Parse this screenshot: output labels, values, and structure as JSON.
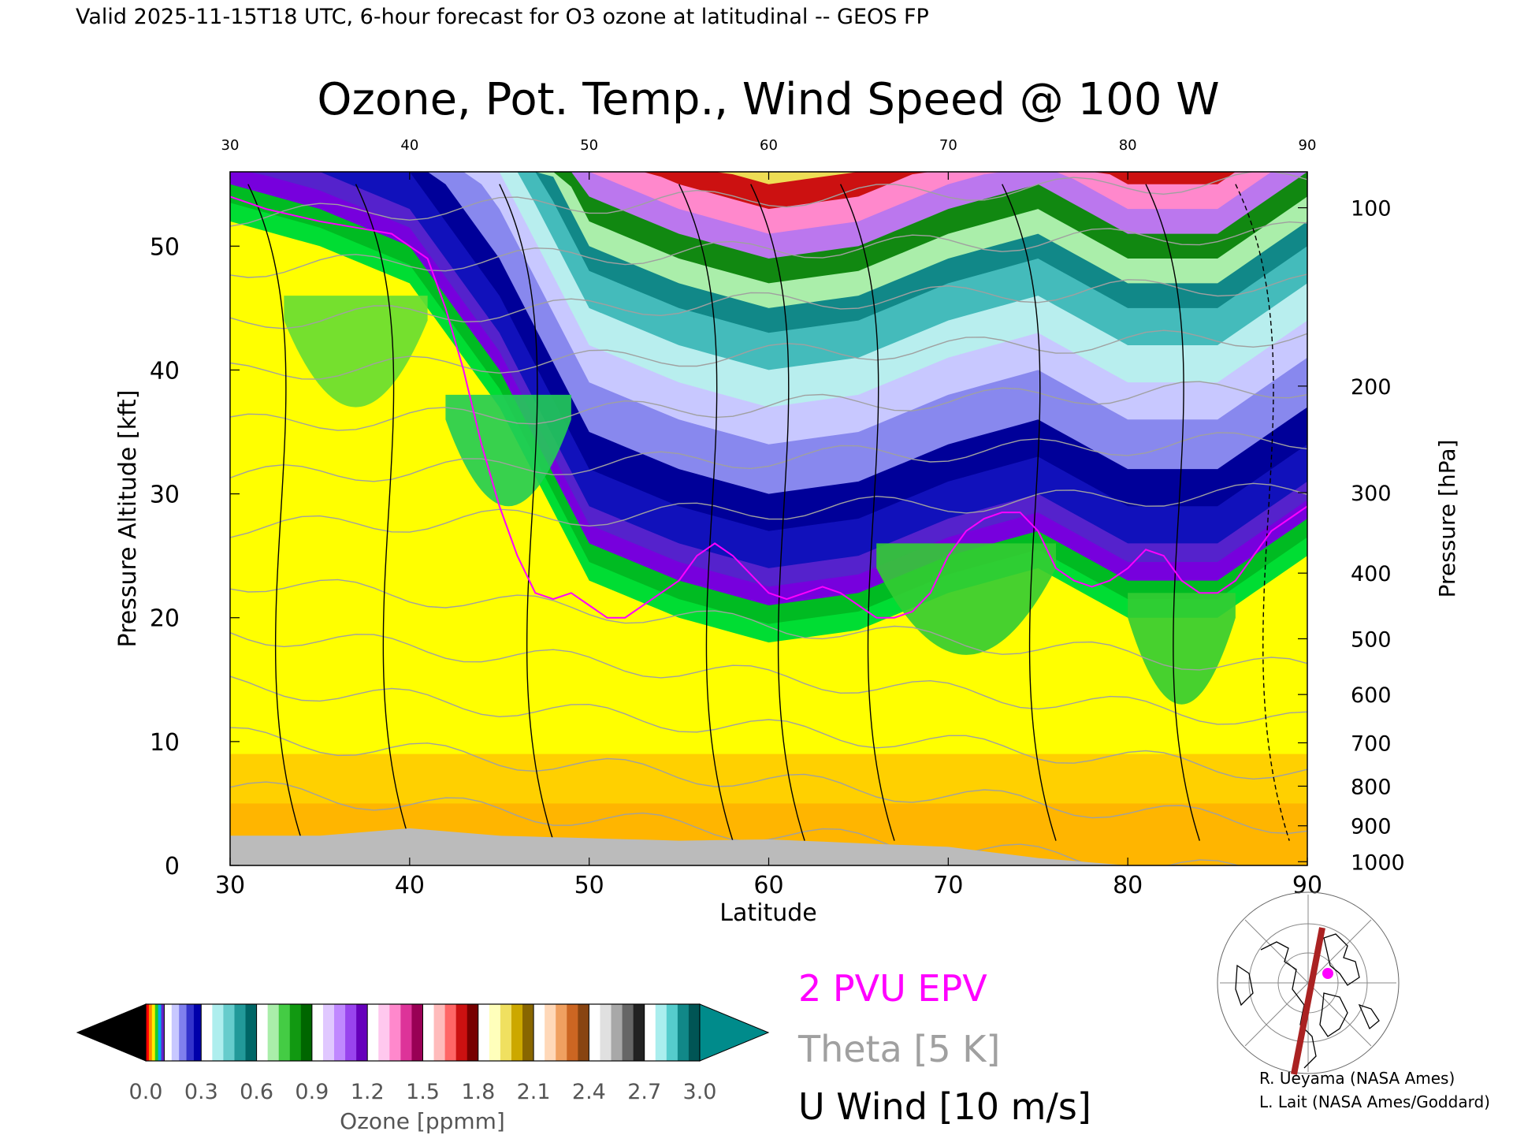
{
  "header": {
    "valid_line": "Valid 2025-11-15T18 UTC, 6-hour forecast for O3 ozone at latitudinal -- GEOS FP"
  },
  "chart_data": {
    "type": "heatmap",
    "title": "Ozone, Pot. Temp., Wind Speed @ 100 W",
    "xlabel": "Latitude",
    "ylabel_left": "Pressure Altitude [kft]",
    "ylabel_right": "Pressure [hPa]",
    "xlim": [
      30,
      90
    ],
    "ylim": [
      0,
      56
    ],
    "x_ticks": [
      30,
      40,
      50,
      60,
      70,
      80,
      90
    ],
    "y_ticks_kft": [
      0,
      10,
      20,
      30,
      40,
      50
    ],
    "pressure_ticks": [
      {
        "label": "100",
        "kft": 53.1
      },
      {
        "label": "200",
        "kft": 38.7
      },
      {
        "label": "300",
        "kft": 30.1
      },
      {
        "label": "400",
        "kft": 23.6
      },
      {
        "label": "500",
        "kft": 18.3
      },
      {
        "label": "600",
        "kft": 13.8
      },
      {
        "label": "700",
        "kft": 9.9
      },
      {
        "label": "800",
        "kft": 6.4
      },
      {
        "label": "900",
        "kft": 3.2
      },
      {
        "label": "1000",
        "kft": 0.3
      }
    ],
    "colorbar": {
      "label": "Ozone [ppmm]",
      "min": 0.0,
      "max": 3.0,
      "tick_labels": [
        "0.0",
        "0.3",
        "0.6",
        "0.9",
        "1.2",
        "1.5",
        "1.8",
        "2.1",
        "2.4",
        "2.7",
        "3.0"
      ],
      "segments": [
        {
          "from": 0.0,
          "to": 0.1,
          "colors": [
            "#ff0000",
            "#ff8800",
            "#ffee00",
            "#22cc22",
            "#00aaee",
            "#6622cc"
          ]
        },
        {
          "from": 0.1,
          "to": 0.3,
          "colors": [
            "#ffffff",
            "#c8c8ff",
            "#8080ee",
            "#3333cc",
            "#0000aa"
          ]
        },
        {
          "from": 0.3,
          "to": 0.6,
          "colors": [
            "#ffffff",
            "#aeeeee",
            "#66cccc",
            "#229999",
            "#006666"
          ]
        },
        {
          "from": 0.6,
          "to": 0.9,
          "colors": [
            "#ffffff",
            "#aaeeaa",
            "#44cc44",
            "#119911",
            "#006600"
          ]
        },
        {
          "from": 0.9,
          "to": 1.2,
          "colors": [
            "#ffffff",
            "#e0c8ff",
            "#c088ff",
            "#9944ee",
            "#6600bb"
          ]
        },
        {
          "from": 1.2,
          "to": 1.5,
          "colors": [
            "#ffffff",
            "#ffc8ee",
            "#ff88cc",
            "#dd3399",
            "#990055"
          ]
        },
        {
          "from": 1.5,
          "to": 1.8,
          "colors": [
            "#ffffff",
            "#ffbbbb",
            "#ff6666",
            "#cc1111",
            "#770000"
          ]
        },
        {
          "from": 1.8,
          "to": 2.1,
          "colors": [
            "#ffffff",
            "#ffffbb",
            "#f0e060",
            "#cca800",
            "#886600"
          ]
        },
        {
          "from": 2.1,
          "to": 2.4,
          "colors": [
            "#ffffff",
            "#ffd8b8",
            "#f0a060",
            "#cc6622",
            "#884411"
          ]
        },
        {
          "from": 2.4,
          "to": 2.7,
          "colors": [
            "#ffffff",
            "#e0e0e0",
            "#a8a8a8",
            "#666666",
            "#222222"
          ]
        },
        {
          "from": 2.7,
          "to": 3.0,
          "colors": [
            "#ffffff",
            "#aaeeee",
            "#55cccc",
            "#118888",
            "#005555"
          ]
        }
      ],
      "under_color": "#000000",
      "over_color": "#008b8b"
    },
    "tropopause_2pvu": [
      [
        30,
        54
      ],
      [
        32,
        53
      ],
      [
        35,
        52
      ],
      [
        37,
        51.5
      ],
      [
        39,
        51
      ],
      [
        41,
        49
      ],
      [
        42,
        45
      ],
      [
        43,
        40
      ],
      [
        44,
        34
      ],
      [
        45,
        29
      ],
      [
        46,
        25
      ],
      [
        47,
        22
      ],
      [
        48,
        21.5
      ],
      [
        49,
        22
      ],
      [
        50,
        21
      ],
      [
        51,
        20
      ],
      [
        52,
        20
      ],
      [
        53,
        21
      ],
      [
        54,
        22
      ],
      [
        55,
        23
      ],
      [
        56,
        25
      ],
      [
        57,
        26
      ],
      [
        58,
        25
      ],
      [
        59,
        23.5
      ],
      [
        60,
        22
      ],
      [
        61,
        21.5
      ],
      [
        62,
        22
      ],
      [
        63,
        22.5
      ],
      [
        64,
        22
      ],
      [
        65,
        21
      ],
      [
        66,
        20
      ],
      [
        67,
        20
      ],
      [
        68,
        20.5
      ],
      [
        69,
        22
      ],
      [
        70,
        25
      ],
      [
        71,
        27
      ],
      [
        72,
        28
      ],
      [
        73,
        28.5
      ],
      [
        74,
        28.5
      ],
      [
        75,
        27
      ],
      [
        76,
        24
      ],
      [
        77,
        23
      ],
      [
        78,
        22.5
      ],
      [
        79,
        23
      ],
      [
        80,
        24
      ],
      [
        81,
        25.5
      ],
      [
        82,
        25
      ],
      [
        83,
        23
      ],
      [
        84,
        22
      ],
      [
        85,
        22
      ],
      [
        86,
        23
      ],
      [
        87,
        25
      ],
      [
        88,
        27
      ],
      [
        89,
        28
      ],
      [
        90,
        29
      ]
    ],
    "ozone_field": {
      "latitudes": [
        30,
        35,
        40,
        45,
        50,
        55,
        60,
        65,
        70,
        75,
        80,
        85,
        90
      ],
      "stratosphere_base_kft": [
        55,
        53,
        50,
        40,
        26,
        23,
        21,
        22,
        25,
        27,
        23,
        23,
        28
      ],
      "surface_kft": [
        2.4,
        2.4,
        3.0,
        2.4,
        2.2,
        2.0,
        2.1,
        1.8,
        1.5,
        0.6,
        0.0,
        0.0,
        0.0
      ]
    },
    "theta_contours_K": [
      280,
      290,
      300,
      310,
      320,
      330,
      340,
      350,
      360,
      370,
      380,
      390,
      400,
      410
    ],
    "u_wind_contours_ms": [
      -10,
      0,
      10,
      20,
      30,
      40,
      50
    ]
  },
  "legend": {
    "epv": {
      "label": "2 PVU EPV",
      "color": "#ff00ff"
    },
    "theta": {
      "label": "Theta [5 K]",
      "color": "#a0a0a0"
    },
    "uwind": {
      "label": "U Wind [10 m/s]",
      "color": "#000000"
    }
  },
  "credits": {
    "line1": "R. Ueyama (NASA Ames)",
    "line2": "L. Lait (NASA Ames/Goddard)"
  },
  "inset_map": {
    "section_line_color": "#aa2222",
    "marker_color": "#ff00ff"
  }
}
